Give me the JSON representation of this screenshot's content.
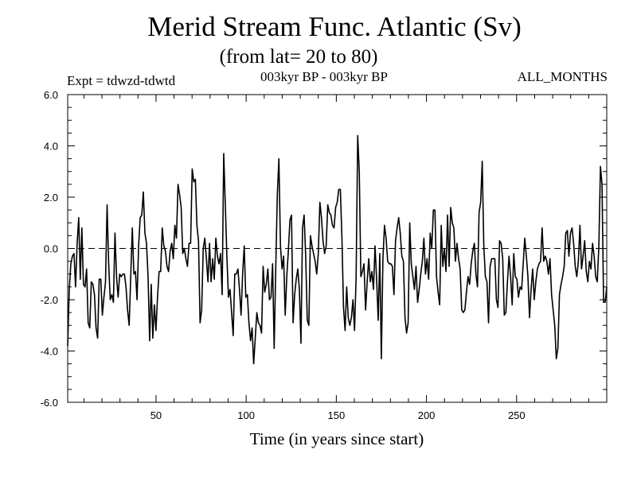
{
  "header": {
    "title": "Merid Stream Func. Atlantic (Sv)",
    "subtitle": "(from lat= 20 to 80)",
    "expt_label": "Expt = tdwzd-tdwtd",
    "period_label": "003kyr BP - 003kyr BP",
    "months_label": "ALL_MONTHS"
  },
  "chart_data": {
    "type": "line",
    "xlabel": "Time (in years since start)",
    "ylabel": "",
    "xlim": [
      1,
      300
    ],
    "ylim": [
      -6,
      6
    ],
    "x_ticks": [
      50,
      100,
      150,
      200,
      250
    ],
    "y_ticks": [
      -6,
      -4,
      -2,
      0,
      2,
      4,
      6
    ],
    "y_tick_labels": [
      "-6.0",
      "-4.0",
      "-2.0",
      "0.0",
      "2.0",
      "4.0",
      "6.0"
    ],
    "zero_line": "dashed",
    "grid": false,
    "line_color": "#000000",
    "y": [
      -3.8,
      -1.6,
      -0.6,
      -0.3,
      -0.2,
      -1.5,
      0.2,
      1.2,
      -1.2,
      0.8,
      -1.4,
      -1.5,
      -0.8,
      -2.9,
      -3.1,
      -1.3,
      -1.4,
      -1.8,
      -3.1,
      -3.5,
      -1.2,
      -1.2,
      -2.6,
      -1.9,
      -1.3,
      1.7,
      -0.6,
      -2.0,
      -1.8,
      -2.1,
      0.6,
      -1.1,
      -1.9,
      -1.0,
      -1.1,
      -1.0,
      -1.0,
      -1.5,
      -2.4,
      -3.0,
      -1.1,
      0.8,
      -1.0,
      -0.9,
      -2.0,
      0.1,
      1.2,
      1.3,
      2.2,
      0.6,
      0.2,
      -1.1,
      -3.6,
      -1.4,
      -3.5,
      -2.2,
      -3.2,
      -1.9,
      -0.9,
      -0.9,
      0.8,
      0.1,
      -0.1,
      -0.7,
      -0.9,
      -0.1,
      0.2,
      -0.4,
      0.9,
      0.4,
      2.5,
      2.1,
      1.6,
      -0.2,
      0.0,
      -0.4,
      -0.7,
      0.2,
      0.2,
      3.1,
      2.6,
      2.7,
      0.9,
      0.3,
      -2.9,
      -2.4,
      0.0,
      0.4,
      -0.4,
      -1.3,
      0.2,
      -1.3,
      -0.4,
      -1.2,
      0.4,
      -0.3,
      -0.6,
      -0.2,
      -1.8,
      3.7,
      1.7,
      -0.3,
      -1.9,
      -1.6,
      -2.5,
      -3.4,
      -1.0,
      -1.0,
      -0.8,
      -1.6,
      -2.6,
      -1.0,
      0.1,
      -1.9,
      -1.8,
      -2.9,
      -3.6,
      -3.1,
      -4.5,
      -3.5,
      -2.5,
      -2.9,
      -3.0,
      -3.3,
      -0.7,
      -1.7,
      -1.4,
      -0.8,
      -2.0,
      -1.9,
      -0.6,
      -3.9,
      -0.8,
      2.1,
      3.5,
      0.1,
      -0.8,
      -0.3,
      -2.6,
      -1.1,
      -0.1,
      1.1,
      1.3,
      -2.9,
      -1.8,
      -1.2,
      -0.8,
      -1.6,
      -3.7,
      0.8,
      1.3,
      -0.3,
      -2.8,
      -3.0,
      0.5,
      0.1,
      -0.2,
      -0.5,
      -1.0,
      -0.2,
      1.8,
      1.2,
      0.3,
      -0.2,
      0.1,
      1.7,
      1.4,
      1.3,
      0.9,
      0.8,
      1.6,
      1.8,
      2.3,
      2.3,
      0.4,
      -2.3,
      -3.2,
      -1.5,
      -2.7,
      -3.0,
      -2.7,
      -2.0,
      -3.2,
      -1.1,
      4.4,
      3.0,
      -1.1,
      -0.9,
      -0.6,
      -2.4,
      -1.3,
      -0.4,
      -1.3,
      -0.9,
      -1.6,
      0.1,
      -1.2,
      -2.8,
      -0.2,
      -4.3,
      -0.4,
      0.9,
      0.4,
      -0.5,
      -0.6,
      -0.6,
      -0.7,
      -1.8,
      0.3,
      0.8,
      1.2,
      0.6,
      -0.3,
      -0.5,
      -2.7,
      -3.3,
      -2.9,
      1.0,
      -0.6,
      -1.1,
      -1.6,
      -0.7,
      -2.1,
      -1.6,
      -1.0,
      -0.5,
      0.4,
      -1.0,
      -0.4,
      -1.2,
      0.6,
      0.0,
      1.5,
      1.5,
      -1.1,
      -1.7,
      -2.2,
      0.9,
      -0.7,
      0.0,
      -0.9,
      1.3,
      -0.7,
      1.6,
      1.0,
      0.8,
      -0.5,
      0.2,
      -0.4,
      -0.8,
      -2.4,
      -2.5,
      -2.4,
      -1.7,
      -1.1,
      -1.4,
      -0.6,
      -0.1,
      0.2,
      -1.0,
      -1.5,
      1.4,
      1.8,
      3.4,
      0.1,
      -1.1,
      -1.3,
      -2.9,
      -0.7,
      -0.4,
      -0.4,
      -0.4,
      -2.0,
      -2.3,
      0.3,
      0.2,
      -0.4,
      -2.6,
      -2.5,
      -1.3,
      -0.3,
      -1.1,
      -2.2,
      -0.2,
      -1.1,
      -1.2,
      -1.9,
      -1.5,
      -1.6,
      -0.6,
      0.4,
      -0.3,
      -1.1,
      -2.7,
      -1.6,
      -0.8,
      -2.0,
      -1.3,
      -0.8,
      -0.6,
      -0.5,
      0.8,
      -0.5,
      -0.3,
      -0.5,
      -1.0,
      -0.4,
      -1.8,
      -2.4,
      -3.0,
      -4.3,
      -3.9,
      -1.8,
      -1.4,
      -1.1,
      -0.7,
      0.6,
      0.7,
      -0.3,
      0.6,
      0.8,
      0.2,
      -0.7,
      -1.1,
      -0.5,
      0.9,
      -0.8,
      -0.3,
      0.3,
      -0.9,
      -1.3,
      -0.5,
      -0.8,
      0.2,
      -0.3,
      -1.1,
      -1.3,
      0.1,
      3.2,
      2.5,
      -2.1,
      -2.1,
      -1.5
    ]
  }
}
